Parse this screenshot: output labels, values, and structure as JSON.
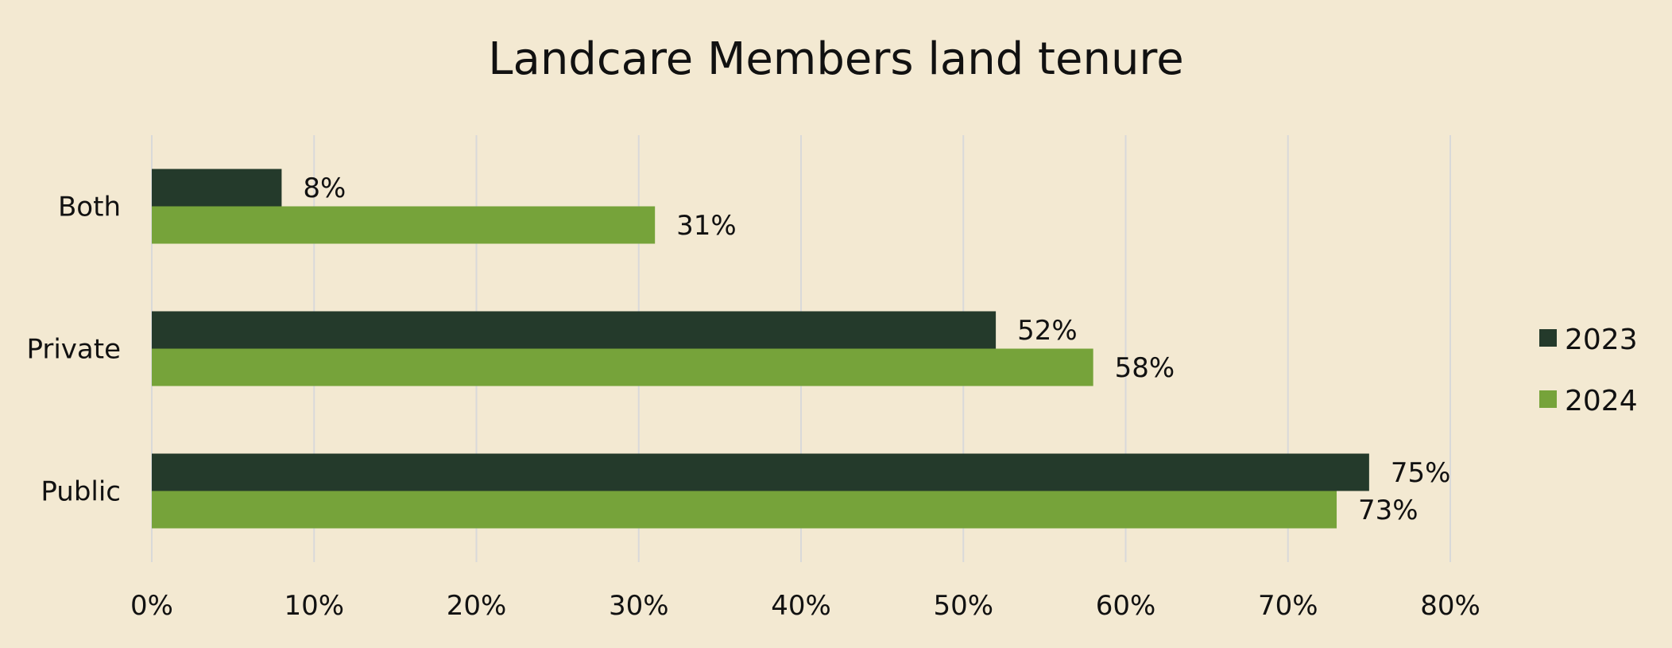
{
  "chart_data": {
    "type": "bar",
    "orientation": "horizontal",
    "title": "Landcare Members land tenure",
    "categories": [
      "Both",
      "Private",
      "Public"
    ],
    "series": [
      {
        "name": "2023",
        "values": [
          8,
          52,
          75
        ],
        "labels": [
          "8%",
          "52%",
          "75%"
        ],
        "color": "#243a2b"
      },
      {
        "name": "2024",
        "values": [
          31,
          58,
          73
        ],
        "labels": [
          "31%",
          "58%",
          "73%"
        ],
        "color": "#76a33a"
      }
    ],
    "xlim": [
      0,
      80
    ],
    "xticks": [
      "0%",
      "10%",
      "20%",
      "30%",
      "40%",
      "50%",
      "60%",
      "70%",
      "80%"
    ],
    "grid": "vertical",
    "legend": "right",
    "background": "#f3e9d2",
    "grid_color": "#d9d9d9"
  }
}
